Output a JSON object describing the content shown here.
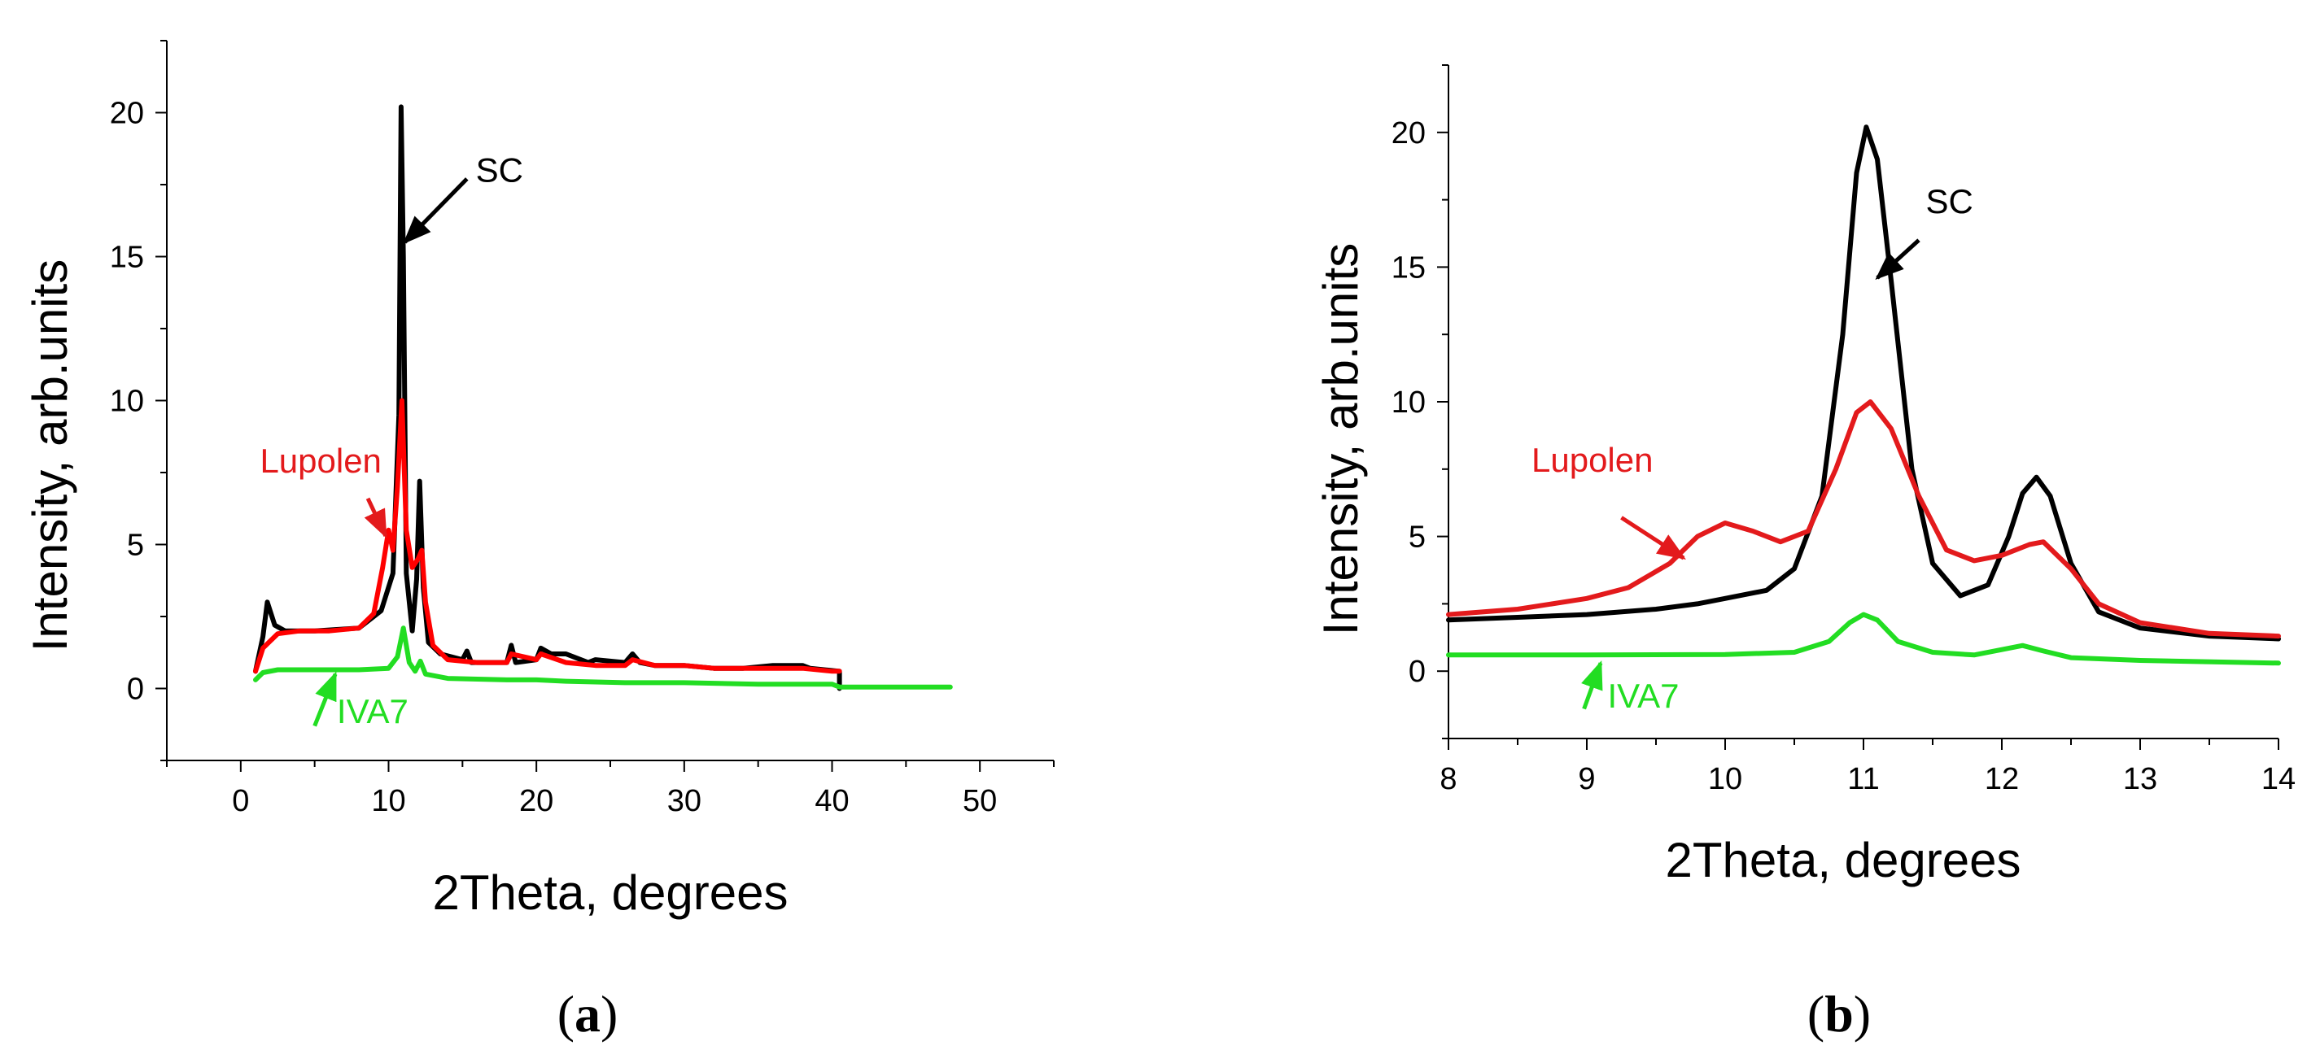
{
  "chart_data": [
    {
      "type": "line",
      "panel": "(a)",
      "panel_letter": "a",
      "xlabel": "2Theta, degrees",
      "ylabel": "Intensity, arb.units",
      "xlim": [
        -5,
        55
      ],
      "ylim": [
        -2.5,
        22.5
      ],
      "xticks": [
        0,
        10,
        20,
        30,
        40,
        50
      ],
      "yticks": [
        0,
        5,
        10,
        15,
        20
      ],
      "series": [
        {
          "name": "SC",
          "color": "#000000",
          "x": [
            1.0,
            1.5,
            1.8,
            2.3,
            3,
            5,
            8,
            9.5,
            10.3,
            10.7,
            10.85,
            11.0,
            11.2,
            11.6,
            11.9,
            12.1,
            12.35,
            12.7,
            13.5,
            15,
            15.3,
            15.6,
            18,
            18.3,
            18.6,
            20,
            20.3,
            21,
            22,
            23.5,
            24,
            26,
            26.5,
            27,
            28,
            30,
            32,
            34,
            36,
            38,
            38.5,
            40.5,
            40.5
          ],
          "y": [
            0.6,
            1.8,
            3.0,
            2.2,
            2.0,
            2.0,
            2.1,
            2.7,
            4.0,
            9.5,
            20.2,
            15.0,
            4.0,
            2.0,
            3.8,
            7.2,
            3.5,
            1.6,
            1.2,
            1.0,
            1.3,
            0.9,
            0.9,
            1.5,
            0.9,
            1.0,
            1.4,
            1.2,
            1.2,
            0.9,
            1.0,
            0.9,
            1.2,
            0.9,
            0.8,
            0.8,
            0.7,
            0.7,
            0.8,
            0.8,
            0.7,
            0.6,
            0.0
          ]
        },
        {
          "name": "Lupolen",
          "color": "#ff0000",
          "x": [
            1.0,
            1.5,
            2.5,
            4,
            6,
            8,
            9.0,
            9.6,
            10.0,
            10.3,
            10.6,
            10.9,
            11.2,
            11.6,
            12.0,
            12.25,
            12.5,
            13,
            14,
            16,
            18,
            18.3,
            20,
            20.3,
            22,
            24,
            26,
            26.5,
            28,
            30,
            32,
            34,
            36,
            38,
            40,
            40.5
          ],
          "y": [
            0.6,
            1.4,
            1.9,
            2.0,
            2.0,
            2.1,
            2.6,
            4.2,
            5.5,
            4.8,
            7.0,
            10.0,
            5.5,
            4.2,
            4.5,
            4.8,
            3.0,
            1.5,
            1.0,
            0.9,
            0.9,
            1.2,
            1.0,
            1.2,
            0.9,
            0.8,
            0.8,
            1.0,
            0.8,
            0.8,
            0.7,
            0.7,
            0.7,
            0.7,
            0.6,
            0.6
          ]
        },
        {
          "name": "IVA7",
          "color": "#22dd22",
          "x": [
            1.0,
            1.5,
            2.5,
            5,
            8,
            10.0,
            10.6,
            11.0,
            11.4,
            11.8,
            12.15,
            12.5,
            14,
            18,
            20,
            22,
            26,
            30,
            35,
            40,
            40.5,
            45,
            48
          ],
          "y": [
            0.3,
            0.55,
            0.65,
            0.65,
            0.65,
            0.7,
            1.1,
            2.1,
            0.9,
            0.6,
            0.95,
            0.5,
            0.35,
            0.3,
            0.3,
            0.25,
            0.2,
            0.2,
            0.15,
            0.15,
            0.05,
            0.05,
            0.05
          ]
        }
      ],
      "annotations": [
        {
          "text": "SC",
          "color": "#000000",
          "x": 15.9,
          "y": 17.6,
          "arrow_from": [
            15.3,
            17.7
          ],
          "arrow_to": [
            11.1,
            15.5
          ]
        },
        {
          "text": "Lupolen",
          "color": "#e31a1c",
          "x": 1.3,
          "y": 7.5,
          "arrow_from": [
            8.6,
            6.6
          ],
          "arrow_to": [
            9.8,
            5.3
          ]
        },
        {
          "text": "IVA7",
          "color": "#22dd22",
          "x": 6.5,
          "y": -1.2,
          "arrow_from": [
            5.0,
            -1.3
          ],
          "arrow_to": [
            6.4,
            0.5
          ]
        }
      ]
    },
    {
      "type": "line",
      "panel": "(b)",
      "panel_letter": "b",
      "xlabel": "2Theta, degrees",
      "ylabel": "Intensity, arb.units",
      "xlim": [
        8,
        14
      ],
      "ylim": [
        -2.5,
        22.5
      ],
      "xticks": [
        8,
        9,
        10,
        11,
        12,
        13,
        14
      ],
      "yticks": [
        0,
        5,
        10,
        15,
        20
      ],
      "series": [
        {
          "name": "SC",
          "color": "#000000",
          "x": [
            8.0,
            8.5,
            9.0,
            9.5,
            9.8,
            10.0,
            10.3,
            10.5,
            10.7,
            10.85,
            10.95,
            11.02,
            11.1,
            11.2,
            11.35,
            11.5,
            11.7,
            11.9,
            12.05,
            12.15,
            12.25,
            12.35,
            12.5,
            12.7,
            13.0,
            13.5,
            14.0
          ],
          "y": [
            1.9,
            2.0,
            2.1,
            2.3,
            2.5,
            2.7,
            3.0,
            3.8,
            6.5,
            12.5,
            18.5,
            20.2,
            19.0,
            14.5,
            7.5,
            4.0,
            2.8,
            3.2,
            5.0,
            6.6,
            7.2,
            6.5,
            4.0,
            2.2,
            1.6,
            1.3,
            1.2
          ]
        },
        {
          "name": "Lupolen",
          "color": "#e31a1c",
          "x": [
            8.0,
            8.5,
            9.0,
            9.3,
            9.6,
            9.8,
            10.0,
            10.2,
            10.4,
            10.6,
            10.8,
            10.95,
            11.05,
            11.2,
            11.4,
            11.6,
            11.8,
            12.0,
            12.2,
            12.3,
            12.5,
            12.7,
            13.0,
            13.5,
            14.0
          ],
          "y": [
            2.1,
            2.3,
            2.7,
            3.1,
            4.0,
            5.0,
            5.5,
            5.2,
            4.8,
            5.2,
            7.5,
            9.6,
            10.0,
            9.0,
            6.5,
            4.5,
            4.1,
            4.3,
            4.7,
            4.8,
            3.8,
            2.5,
            1.8,
            1.4,
            1.3
          ]
        },
        {
          "name": "IVA7",
          "color": "#22dd22",
          "x": [
            8.0,
            9.0,
            10.0,
            10.5,
            10.75,
            10.9,
            11.0,
            11.1,
            11.25,
            11.5,
            11.8,
            12.0,
            12.15,
            12.3,
            12.5,
            13.0,
            14.0
          ],
          "y": [
            0.6,
            0.6,
            0.62,
            0.7,
            1.1,
            1.8,
            2.1,
            1.9,
            1.1,
            0.7,
            0.6,
            0.8,
            0.95,
            0.75,
            0.5,
            0.4,
            0.3
          ]
        }
      ],
      "annotations": [
        {
          "text": "SC",
          "color": "#000000",
          "x": 11.45,
          "y": 17.0,
          "arrow_from": [
            11.4,
            16.0
          ],
          "arrow_to": [
            11.1,
            14.6
          ]
        },
        {
          "text": "Lupolen",
          "color": "#e31a1c",
          "x": 8.6,
          "y": 7.4,
          "arrow_from": [
            9.25,
            5.7
          ],
          "arrow_to": [
            9.7,
            4.2
          ]
        },
        {
          "text": "IVA7",
          "color": "#22dd22",
          "x": 9.15,
          "y": -1.35,
          "arrow_from": [
            8.98,
            -1.4
          ],
          "arrow_to": [
            9.1,
            0.3
          ]
        }
      ]
    }
  ]
}
